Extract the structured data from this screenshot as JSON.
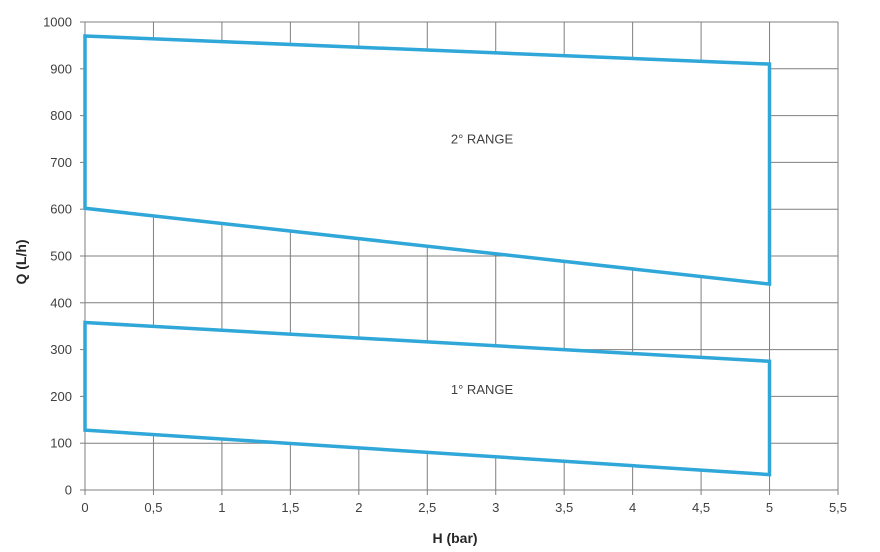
{
  "chart_data": {
    "type": "area",
    "xlabel": "H (bar)",
    "ylabel": "Q (L/h)",
    "xlim": [
      0,
      5.5
    ],
    "ylim": [
      0,
      1000
    ],
    "x_ticks": [
      "0",
      "0,5",
      "1",
      "1,5",
      "2",
      "2,5",
      "3",
      "3,5",
      "4",
      "4,5",
      "5",
      "5,5"
    ],
    "y_ticks": [
      "0",
      "100",
      "200",
      "300",
      "400",
      "500",
      "600",
      "700",
      "800",
      "900",
      "1000"
    ],
    "grid": true,
    "line_color": "#2fa7d8",
    "series": [
      {
        "name": "2° RANGE",
        "label_position": {
          "x": 2.9,
          "y": 740
        },
        "polygon": [
          {
            "x": 0,
            "y": 970
          },
          {
            "x": 5,
            "y": 910
          },
          {
            "x": 5,
            "y": 440
          },
          {
            "x": 0,
            "y": 602
          }
        ]
      },
      {
        "name": "1° RANGE",
        "label_position": {
          "x": 2.9,
          "y": 205
        },
        "polygon": [
          {
            "x": 0,
            "y": 358
          },
          {
            "x": 5,
            "y": 275
          },
          {
            "x": 5,
            "y": 33
          },
          {
            "x": 0,
            "y": 128
          }
        ]
      }
    ]
  }
}
